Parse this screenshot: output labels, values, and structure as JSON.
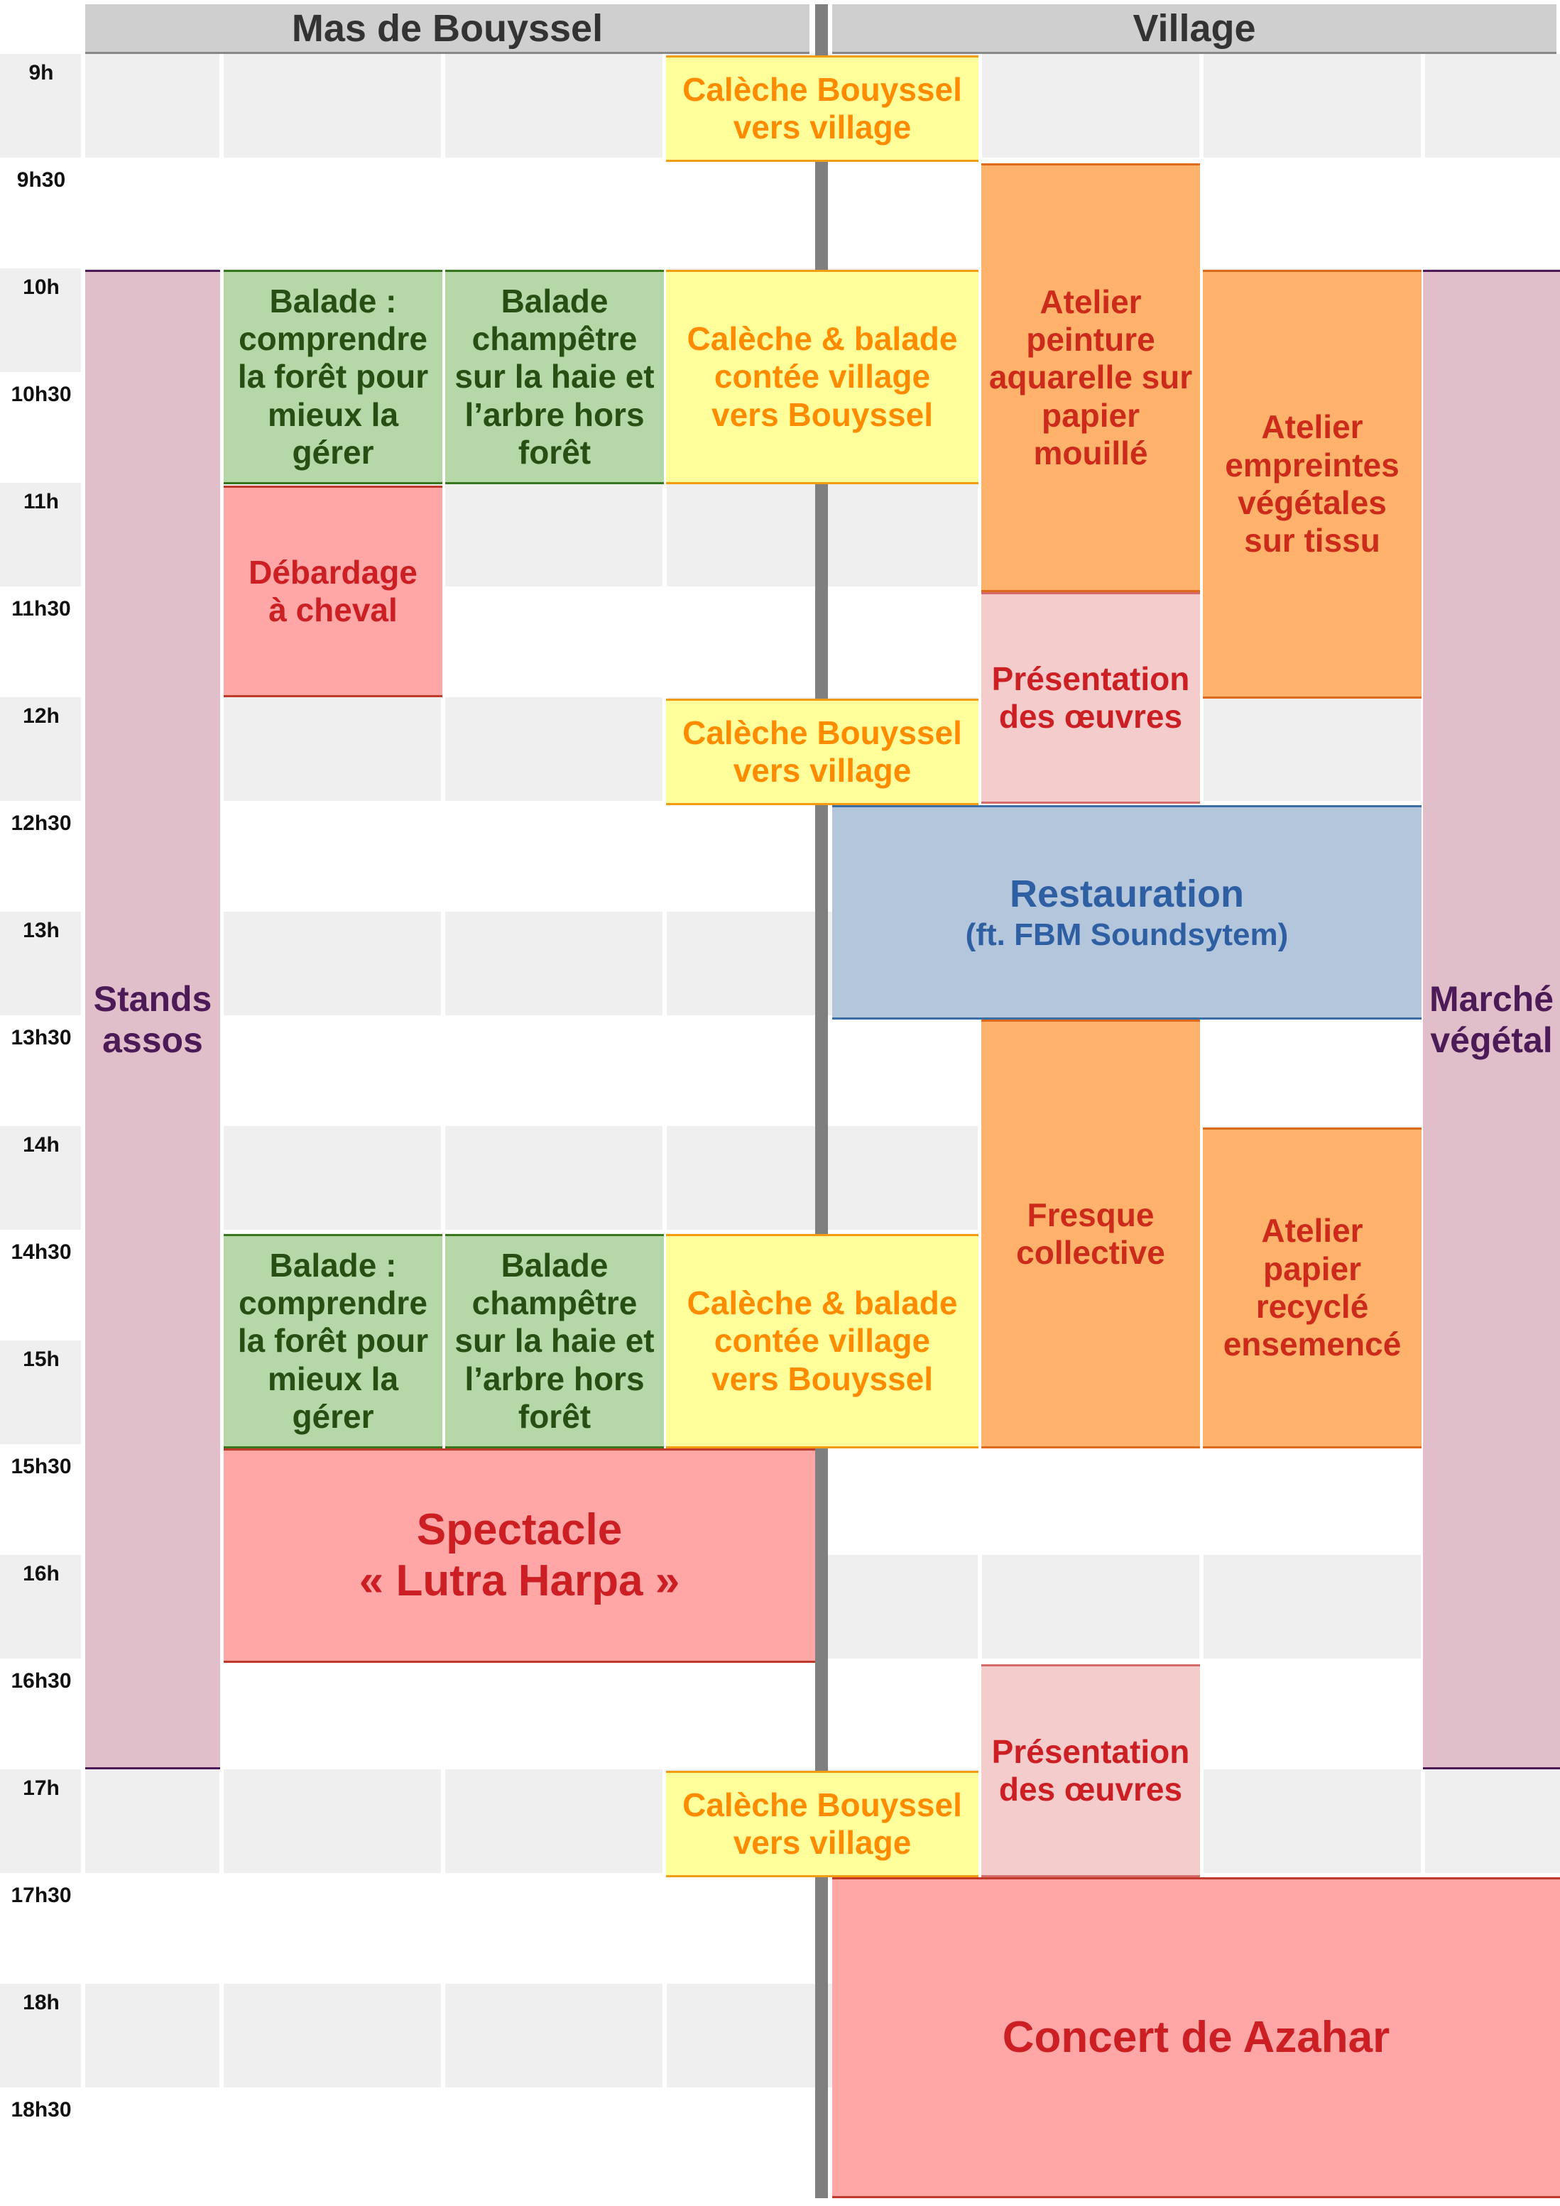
{
  "headers": {
    "left": "Mas de Bouyssel",
    "right": "Village"
  },
  "times": [
    "9h",
    "9h30",
    "10h",
    "10h30",
    "11h",
    "11h30",
    "12h",
    "12h30",
    "13h",
    "13h30",
    "14h",
    "14h30",
    "15h",
    "15h30",
    "16h",
    "16h30",
    "17h",
    "17h30",
    "18h",
    "18h30"
  ],
  "events": {
    "stands": "Stands\nassos",
    "marche": "Marché\nvégétal",
    "caleche_1": "Calèche Bouyssel\nvers village",
    "caleche_2": "Calèche & balade\ncontée village\nvers Bouyssel",
    "caleche_3": "Calèche Bouyssel\nvers village",
    "caleche_4": "Calèche & balade\ncontée village\nvers Bouyssel",
    "caleche_5": "Calèche Bouyssel\nvers village",
    "balade_foret_1": "Balade :\ncomprendre\nla forêt pour\nmieux la\ngérer",
    "balade_haie_1": "Balade\nchampêtre\nsur la haie et\nl’arbre hors\nforêt",
    "balade_foret_2": "Balade :\ncomprendre\nla forêt pour\nmieux la\ngérer",
    "balade_haie_2": "Balade\nchampêtre\nsur la haie et\nl’arbre hors\nforêt",
    "debardage": "Débardage\nà cheval",
    "aquarelle": "Atelier\npeinture\naquarelle sur\npapier\nmouillé",
    "empreintes": "Atelier\nempreintes\nvégétales\nsur tissu",
    "presentation_1": "Présentation\ndes œuvres",
    "presentation_2": "Présentation\ndes œuvres",
    "restauration": "Restauration",
    "restauration_sub": "(ft. FBM Soundsytem)",
    "fresque": "Fresque\ncollective",
    "papier": "Atelier\npapier\nrecyclé\nensemencé",
    "spectacle": "Spectacle\n« Lutra Harpa »",
    "concert": "Concert de Azahar"
  }
}
